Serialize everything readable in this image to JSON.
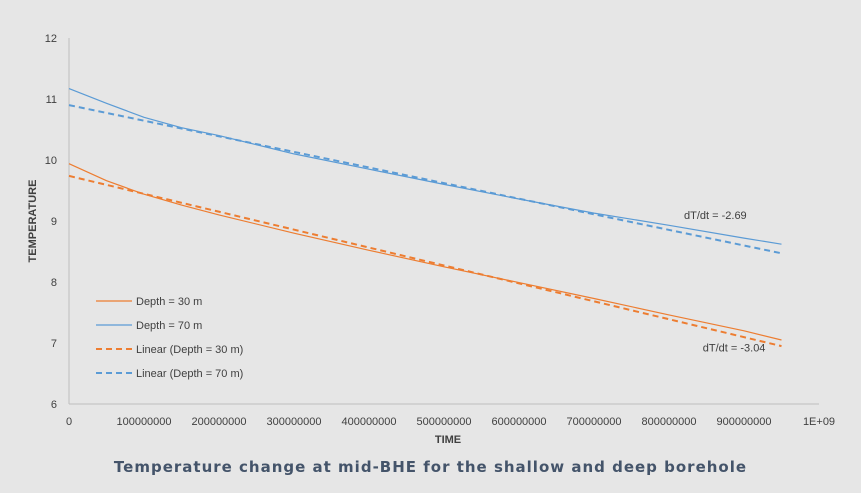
{
  "chart_data": {
    "type": "line",
    "title": "Temperature change at mid-BHE for the shallow and deep borehole",
    "xlabel": "TIME",
    "ylabel": "TEMPERATURE",
    "xlim": [
      0,
      1000000000
    ],
    "ylim": [
      6,
      12
    ],
    "x_ticks": [
      0,
      100000000,
      200000000,
      300000000,
      400000000,
      500000000,
      600000000,
      700000000,
      800000000,
      900000000,
      1000000000
    ],
    "x_tick_labels": [
      "0",
      "100000000",
      "200000000",
      "300000000",
      "400000000",
      "500000000",
      "600000000",
      "700000000",
      "800000000",
      "900000000",
      "1E+09"
    ],
    "y_ticks": [
      6,
      7,
      8,
      9,
      10,
      11,
      12
    ],
    "y_tick_labels": [
      "6",
      "7",
      "8",
      "9",
      "10",
      "11",
      "12"
    ],
    "grid": false,
    "legend_position": "bottom-left",
    "series": [
      {
        "name": "Depth = 30 m",
        "style": "solid",
        "color": "#ed7d31",
        "x": [
          0,
          50000000,
          100000000,
          150000000,
          200000000,
          300000000,
          400000000,
          500000000,
          600000000,
          700000000,
          800000000,
          900000000,
          950000000
        ],
        "y": [
          9.94,
          9.66,
          9.44,
          9.26,
          9.1,
          8.8,
          8.52,
          8.25,
          7.99,
          7.73,
          7.46,
          7.2,
          7.05
        ]
      },
      {
        "name": "Depth = 70 m",
        "style": "solid",
        "color": "#5b9bd5",
        "x": [
          0,
          50000000,
          100000000,
          150000000,
          200000000,
          300000000,
          400000000,
          500000000,
          600000000,
          700000000,
          800000000,
          900000000,
          950000000
        ],
        "y": [
          11.17,
          10.93,
          10.7,
          10.53,
          10.4,
          10.1,
          9.85,
          9.6,
          9.36,
          9.13,
          8.93,
          8.72,
          8.62
        ]
      },
      {
        "name": "Linear (Depth = 30 m)",
        "style": "dashed",
        "color": "#ed7d31",
        "x": [
          0,
          950000000
        ],
        "y": [
          9.74,
          6.95
        ]
      },
      {
        "name": "Linear (Depth = 70 m)",
        "style": "dashed",
        "color": "#5b9bd5",
        "x": [
          0,
          950000000
        ],
        "y": [
          10.9,
          8.47
        ]
      }
    ],
    "annotations": [
      {
        "text": "dT/dt = -2.69",
        "x": 820000000,
        "y": 9.1
      },
      {
        "text": "dT/dt = -3.04",
        "x": 845000000,
        "y": 6.93
      }
    ]
  }
}
